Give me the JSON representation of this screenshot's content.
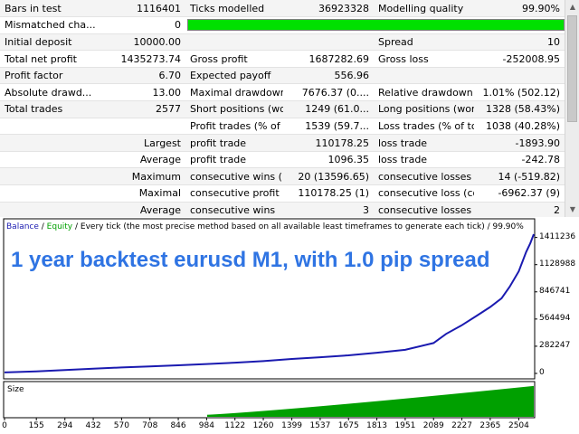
{
  "report": {
    "rows": [
      [
        "Bars in test",
        "1116401",
        "Ticks modelled",
        "36923328",
        "Modelling quality",
        "99.90%"
      ],
      [
        "Mismatched cha...",
        "0",
        "",
        "",
        "",
        ""
      ],
      [
        "Initial deposit",
        "10000.00",
        "",
        "",
        "Spread",
        "10"
      ],
      [
        "Total net profit",
        "1435273.74",
        "Gross profit",
        "1687282.69",
        "Gross loss",
        "-252008.95"
      ],
      [
        "Profit factor",
        "6.70",
        "Expected payoff",
        "556.96",
        "",
        ""
      ],
      [
        "Absolute drawd...",
        "13.00",
        "Maximal drawdown",
        "7676.37 (0....",
        "Relative drawdown",
        "1.01% (502.12)"
      ],
      [
        "Total trades",
        "2577",
        "Short positions (won...",
        "1249 (61.0...",
        "Long positions (won...",
        "1328 (58.43%)"
      ],
      [
        "",
        "",
        "Profit trades (% of tot...",
        "1539 (59.7...",
        "Loss trades (% of total)",
        "1038 (40.28%)"
      ],
      [
        "",
        "Largest",
        "profit trade",
        "110178.25",
        "loss trade",
        "-1893.90"
      ],
      [
        "",
        "Average",
        "profit trade",
        "1096.35",
        "loss trade",
        "-242.78"
      ],
      [
        "",
        "Maximum",
        "consecutive wins (pr...",
        "20 (13596.65)",
        "consecutive losses (lo...",
        "14 (-519.82)"
      ],
      [
        "",
        "Maximal",
        "consecutive profit (co...",
        "110178.25 (1)",
        "consecutive loss (cou...",
        "-6962.37 (9)"
      ],
      [
        "",
        "Average",
        "consecutive wins",
        "3",
        "consecutive losses",
        "2"
      ]
    ],
    "modelling_quality_fraction": 0.999
  },
  "legend": {
    "balance": "Balance",
    "sep1": " / ",
    "equity": "Equity",
    "rest": " / Every tick (the most precise method based on all available least timeframes to generate each tick) / 99.90%"
  },
  "overlay_title": "1 year backtest eurusd M1, with 1.0 pip spread",
  "size_label": "Size",
  "colors": {
    "balance_line": "#1a1ab0",
    "equity_line": "#00a000",
    "size_bars": "#00a000",
    "title": "#2f74e3",
    "quality_bar": "#00e000"
  },
  "chart_data": {
    "type": "line",
    "title": "",
    "xlabel": "",
    "ylabel": "",
    "x_ticks": [
      "0",
      "155",
      "294",
      "432",
      "570",
      "708",
      "846",
      "984",
      "1122",
      "1260",
      "1399",
      "1537",
      "1675",
      "1813",
      "1951",
      "2089",
      "2227",
      "2365",
      "2504"
    ],
    "y_ticks": [
      "0",
      "282247",
      "564494",
      "846741",
      "1128988",
      "1411236"
    ],
    "xlim": [
      0,
      2577
    ],
    "ylim": [
      0,
      1445273
    ],
    "series": [
      {
        "name": "Balance",
        "x": [
          0,
          155,
          294,
          432,
          570,
          708,
          846,
          984,
          1122,
          1260,
          1399,
          1537,
          1675,
          1813,
          1951,
          2089,
          2150,
          2227,
          2300,
          2365,
          2420,
          2460,
          2504,
          2540,
          2560,
          2577
        ],
        "y": [
          10000,
          22000,
          36000,
          50000,
          62000,
          73000,
          84000,
          98000,
          112000,
          128000,
          150000,
          168000,
          188000,
          215000,
          245000,
          315000,
          410000,
          500000,
          600000,
          690000,
          780000,
          900000,
          1060000,
          1260000,
          1350000,
          1445273
        ]
      }
    ],
    "size_bars": {
      "x_start": 984,
      "x_end": 2577,
      "y_start": 0.06,
      "y_end": 0.9
    }
  }
}
